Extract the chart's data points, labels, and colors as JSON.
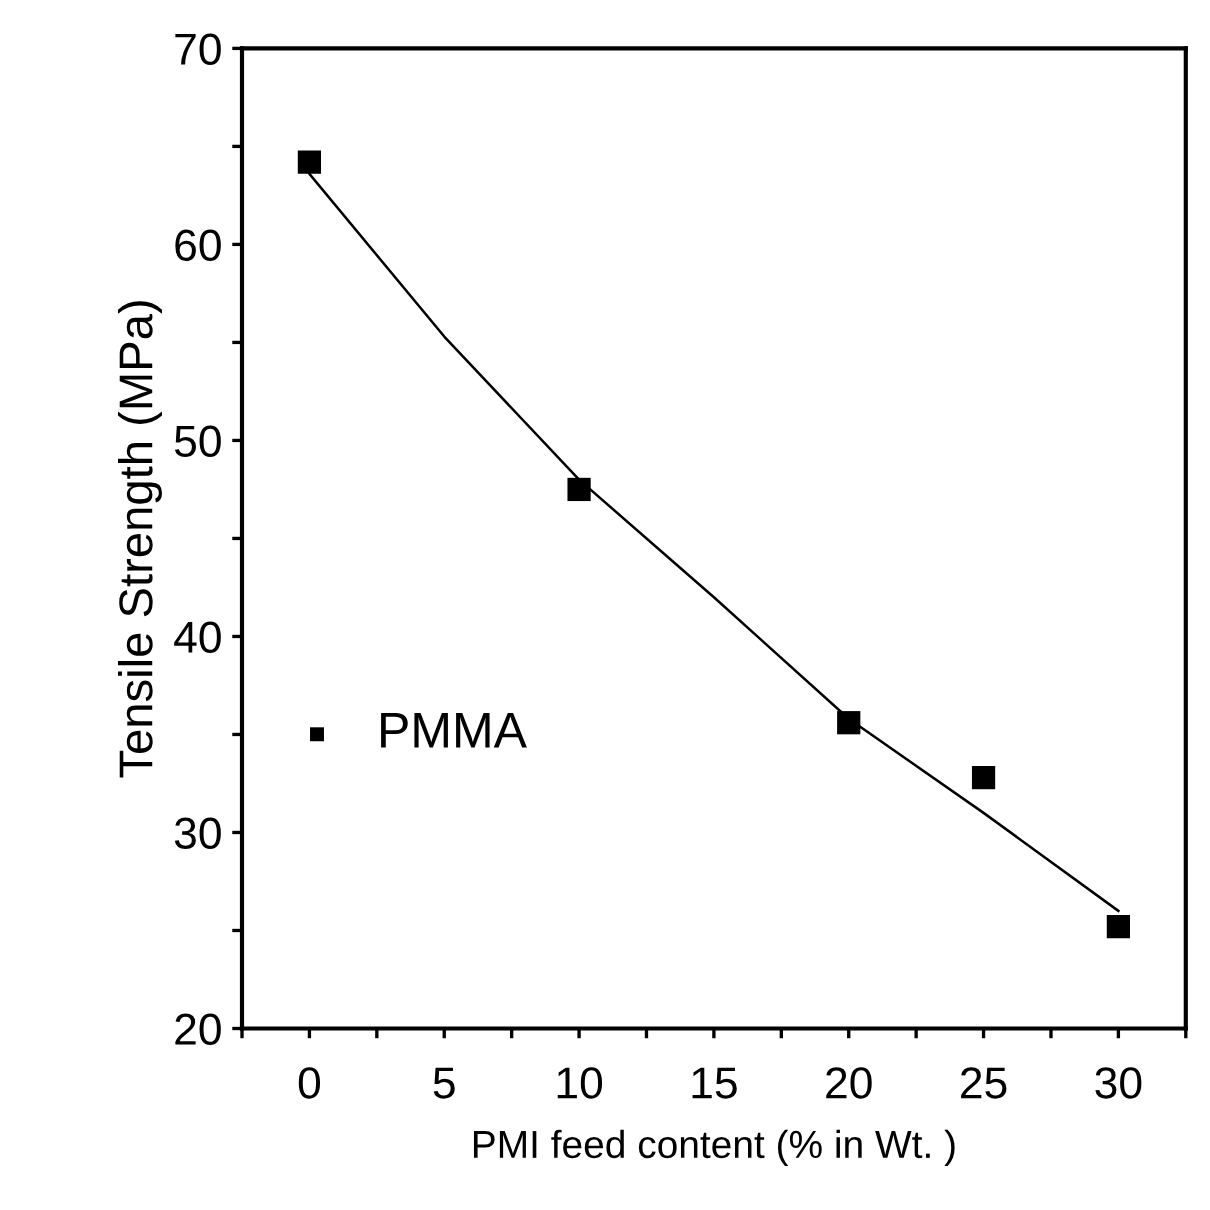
{
  "chart_data": {
    "type": "scatter",
    "xlabel": "PMI feed content (% in Wt. )",
    "ylabel": "Tensile Strength (MPa)",
    "xlim": [
      -2.5,
      32.5
    ],
    "ylim": [
      20,
      70
    ],
    "xticks": [
      {
        "value": -2.5,
        "label": null
      },
      0,
      {
        "value": 2.5,
        "label": null
      },
      5,
      {
        "value": 7.5,
        "label": null
      },
      10,
      {
        "value": 12.5,
        "label": null
      },
      15,
      {
        "value": 17.5,
        "label": null
      },
      20,
      {
        "value": 22.5,
        "label": null
      },
      25,
      {
        "value": 27.5,
        "label": null
      },
      30,
      {
        "value": 32.5,
        "label": null
      }
    ],
    "yticks": [
      20,
      {
        "value": 25,
        "label": null
      },
      30,
      {
        "value": 35,
        "label": null
      },
      40,
      {
        "value": 45,
        "label": null
      },
      50,
      {
        "value": 55,
        "label": null
      },
      60,
      {
        "value": 65,
        "label": null
      },
      70
    ],
    "grid": false,
    "legend": "left",
    "marker": "square",
    "series": [
      {
        "name": "PMMA",
        "color": "#000000",
        "x": [
          0,
          10,
          20,
          25,
          30
        ],
        "values": [
          64.2,
          47.5,
          35.6,
          32.8,
          25.2
        ]
      },
      {
        "type": "line",
        "color": "#000000",
        "marker": "none",
        "line_style": "solid",
        "x": [
          0,
          5,
          10,
          15,
          20,
          25,
          30
        ],
        "values": [
          63.6,
          55.3,
          48.0,
          42.0,
          35.8,
          31.0,
          26.0
        ]
      }
    ]
  }
}
